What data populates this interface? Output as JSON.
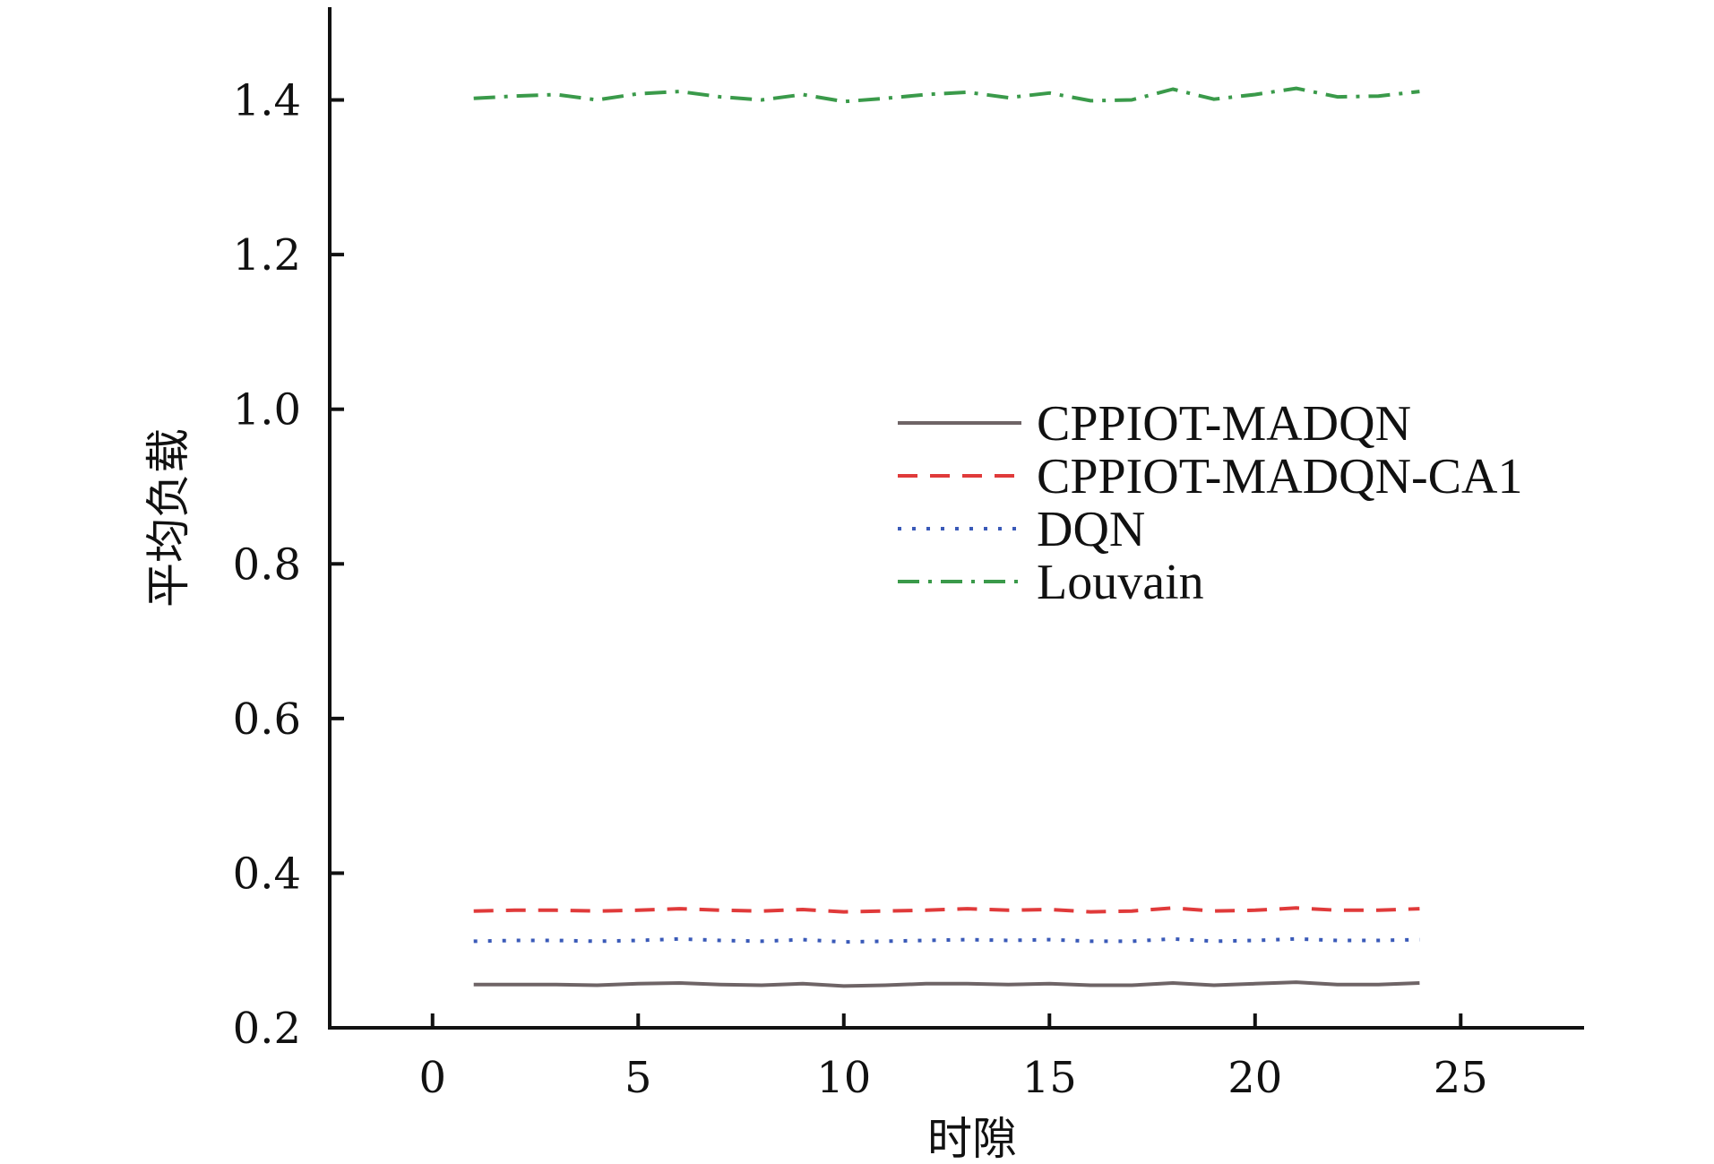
{
  "chart_data": {
    "type": "line",
    "xlabel": "时隙",
    "ylabel": "平均负载",
    "xlim": [
      -2.5,
      28
    ],
    "ylim": [
      0.2,
      1.52
    ],
    "xticks": [
      0,
      5,
      10,
      15,
      20,
      25
    ],
    "xtick_labels": [
      "0",
      "5",
      "10",
      "15",
      "20",
      "25"
    ],
    "yticks": [
      0.2,
      0.4,
      0.6,
      0.8,
      1.0,
      1.2,
      1.4
    ],
    "ytick_labels": [
      "0.2",
      "0.4",
      "0.6",
      "0.8",
      "1.0",
      "1.2",
      "1.4"
    ],
    "grid": false,
    "legend_position": "center-right",
    "x": [
      1,
      2,
      3,
      4,
      5,
      6,
      7,
      8,
      9,
      10,
      11,
      12,
      13,
      14,
      15,
      16,
      17,
      18,
      19,
      20,
      21,
      22,
      23,
      24
    ],
    "series": [
      {
        "name": "CPPIOT-MADQN",
        "color": "#6e6466",
        "dash": "solid",
        "values": [
          0.256,
          0.256,
          0.256,
          0.255,
          0.257,
          0.258,
          0.256,
          0.255,
          0.257,
          0.254,
          0.255,
          0.257,
          0.257,
          0.256,
          0.257,
          0.255,
          0.255,
          0.258,
          0.255,
          0.257,
          0.259,
          0.256,
          0.256,
          0.258
        ]
      },
      {
        "name": "CPPIOT-MADQN-CA1",
        "color": "#e03a3a",
        "dash": "dashed",
        "values": [
          0.351,
          0.352,
          0.352,
          0.351,
          0.352,
          0.354,
          0.352,
          0.351,
          0.353,
          0.35,
          0.351,
          0.352,
          0.354,
          0.352,
          0.353,
          0.35,
          0.351,
          0.355,
          0.351,
          0.352,
          0.355,
          0.352,
          0.352,
          0.354
        ]
      },
      {
        "name": "DQN",
        "color": "#3a5ab8",
        "dash": "dotted",
        "values": [
          0.312,
          0.313,
          0.313,
          0.312,
          0.313,
          0.315,
          0.313,
          0.312,
          0.314,
          0.311,
          0.312,
          0.313,
          0.314,
          0.313,
          0.314,
          0.312,
          0.312,
          0.315,
          0.312,
          0.313,
          0.315,
          0.313,
          0.313,
          0.314
        ]
      },
      {
        "name": "Louvain",
        "color": "#3a9a4a",
        "dash": "dashdot",
        "values": [
          1.402,
          1.405,
          1.407,
          1.4,
          1.408,
          1.411,
          1.404,
          1.4,
          1.407,
          1.398,
          1.402,
          1.407,
          1.41,
          1.403,
          1.409,
          1.399,
          1.4,
          1.414,
          1.401,
          1.407,
          1.415,
          1.404,
          1.405,
          1.411
        ]
      }
    ]
  }
}
